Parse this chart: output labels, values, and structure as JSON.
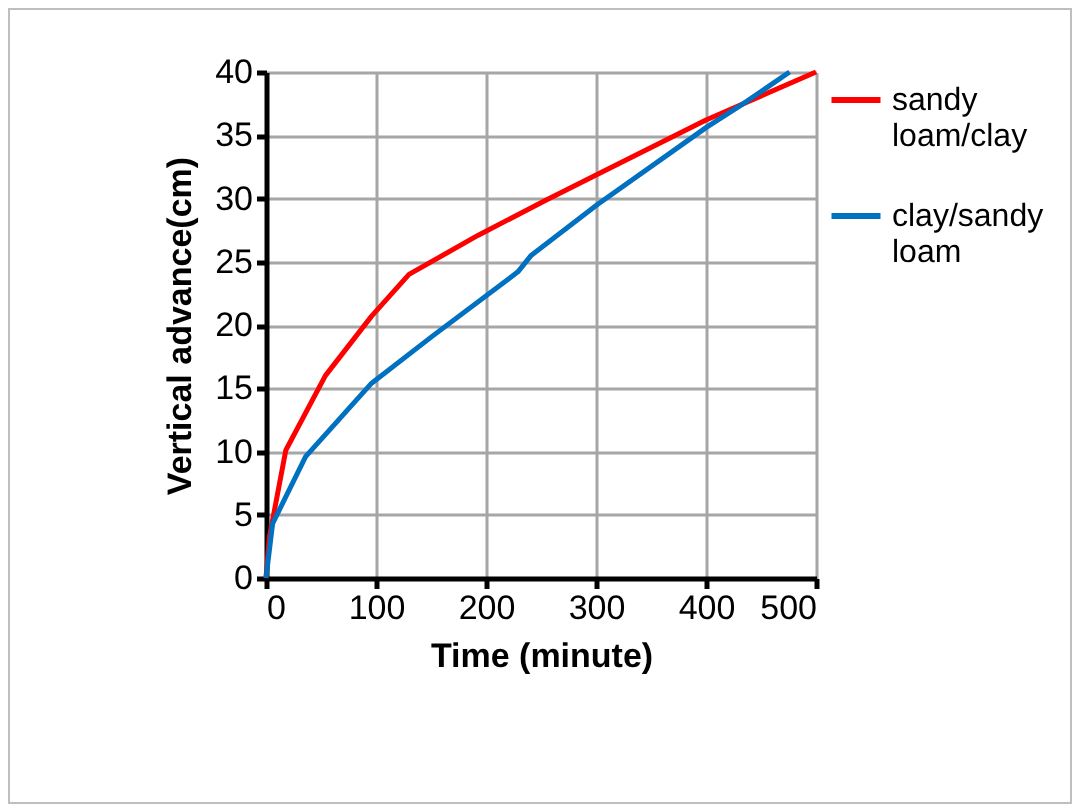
{
  "chart_data": {
    "type": "line",
    "xlabel": "Time (minute)",
    "ylabel": "Vertical  advance(cm)",
    "xlim": [
      0,
      500
    ],
    "xticks": [
      0,
      100,
      200,
      300,
      400,
      500
    ],
    "ylim": [
      0,
      40
    ],
    "yticks": [
      0,
      5,
      10,
      15,
      20,
      25,
      30,
      35,
      40
    ],
    "grid": true,
    "legend": "right",
    "marker": "none",
    "line_style": "solid",
    "series": [
      {
        "name": "sandy loam/clay",
        "color": "#ff0000",
        "x": [
          0,
          3,
          18,
          54,
          96,
          130,
          193,
          253,
          301,
          400,
          500
        ],
        "values": [
          0,
          3.2,
          10.1,
          16,
          20.7,
          24,
          27.1,
          29.8,
          31.9,
          36.2,
          40
        ]
      },
      {
        "name": "clay/sandy loam",
        "color": "#0070c0",
        "x": [
          0,
          6,
          36,
          96,
          151,
          229,
          241,
          301,
          400,
          434,
          476
        ],
        "values": [
          0,
          4.3,
          9.6,
          15.4,
          19.1,
          24.2,
          25.5,
          29.5,
          35.6,
          37.5,
          40
        ]
      }
    ]
  }
}
